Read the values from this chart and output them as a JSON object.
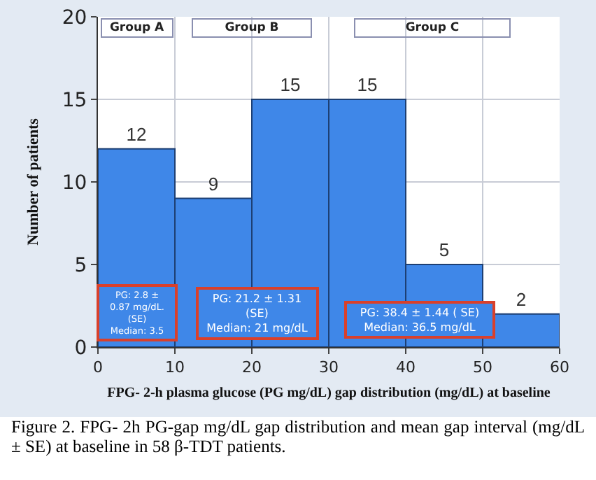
{
  "chart_data": {
    "type": "histogram",
    "bins": [
      0,
      10,
      20,
      30,
      40,
      50,
      60
    ],
    "values": [
      12,
      9,
      15,
      15,
      5,
      2
    ],
    "color": "#3f87e8",
    "data_labels": true,
    "xlabel": "FPG- 2-h plasma glucose (PG mg/dL) gap distribution (mg/dL) at baseline",
    "ylabel": "Number of patients",
    "xlim": [
      0,
      60
    ],
    "xticks": [
      0,
      10,
      20,
      30,
      40,
      50,
      60
    ],
    "ylim": [
      0,
      20
    ],
    "yticks": [
      0,
      5,
      10,
      15,
      20
    ],
    "grid": true,
    "annotations": [
      "Group A",
      "Group B",
      "Group C",
      "PG: 2.8 ±\n0.87 mg/dL.\n(SE)\nMedian: 3.5",
      "PG: 21.2 ± 1.31\n(SE)\nMedian: 21 mg/dL",
      "PG: 38.4 ± 1.44 ( SE)\nMedian: 36.5 mg/dL",
      "Figure 2. FPG- 2h PG-gap mg/dL gap distribution and mean gap interval (mg/dL ± SE) at baseline in 58 β-TDT patients."
    ]
  }
}
